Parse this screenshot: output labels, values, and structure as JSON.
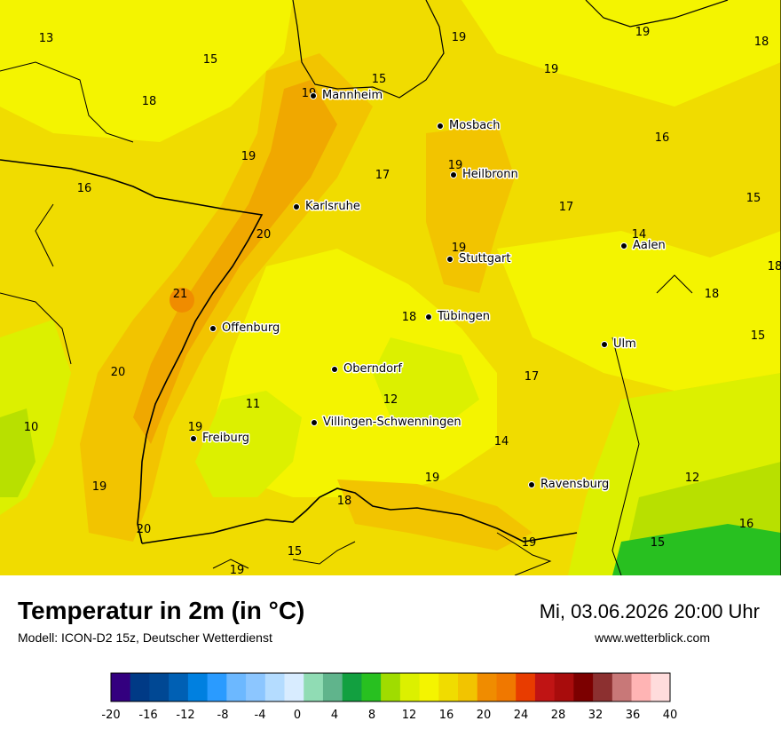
{
  "title": "Temperatur in 2m (in °C)",
  "subtitle": "Modell: ICON-D2 15z, Deutscher Wetterdienst",
  "datetime": "Mi, 03.06.2026 20:00 Uhr",
  "website": "www.wetterblick.com",
  "colors": {
    "t10_12": "#b8e000",
    "t12_14": "#dcf000",
    "t14_16": "#f4f400",
    "t16_18": "#f0dc00",
    "t18_20": "#f2c400",
    "t20_22": "#f0a800",
    "border": "#000000"
  },
  "cities": [
    {
      "name": "Mannheim"
    },
    {
      "name": "Mosbach"
    },
    {
      "name": "Heilbronn"
    },
    {
      "name": "Karlsruhe"
    },
    {
      "name": "Aalen"
    },
    {
      "name": "Stuttgart"
    },
    {
      "name": "Tübingen"
    },
    {
      "name": "Offenburg"
    },
    {
      "name": "Ulm"
    },
    {
      "name": "Oberndorf"
    },
    {
      "name": "Villingen-Schwenningen"
    },
    {
      "name": "Freiburg"
    },
    {
      "name": "Ravensburg"
    }
  ],
  "temp_values": [
    "13",
    "15",
    "19",
    "19",
    "18",
    "19",
    "15",
    "19",
    "18",
    "16",
    "19",
    "17",
    "19",
    "16",
    "17",
    "15",
    "20",
    "14",
    "19",
    "18",
    "21",
    "18",
    "18",
    "15",
    "20",
    "17",
    "12",
    "11",
    "19",
    "10",
    "14",
    "19",
    "12",
    "19",
    "18",
    "16",
    "20",
    "19",
    "15",
    "15",
    "19"
  ],
  "legend": {
    "ticks": [
      "-20",
      "-16",
      "-12",
      "-8",
      "-4",
      "0",
      "4",
      "8",
      "12",
      "16",
      "20",
      "24",
      "28",
      "32",
      "36",
      "40"
    ],
    "colors": [
      "#33007f",
      "#003a86",
      "#004894",
      "#0060b4",
      "#0080e0",
      "#2a9bff",
      "#6cb8ff",
      "#8cc6ff",
      "#b4dcff",
      "#d8ecff",
      "#90dcb4",
      "#60b48c",
      "#12a040",
      "#28c020",
      "#a0dc00",
      "#dcf000",
      "#f4f400",
      "#f0dc00",
      "#f2c400",
      "#f08c00",
      "#f07800",
      "#e83c00",
      "#c01414",
      "#a80c0c",
      "#7c0000",
      "#8c3030",
      "#c87878",
      "#ffb4b4",
      "#ffdcdc"
    ]
  }
}
